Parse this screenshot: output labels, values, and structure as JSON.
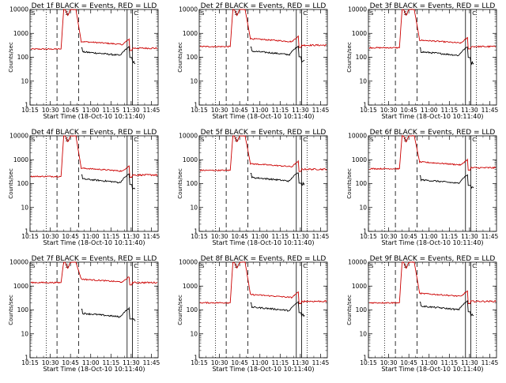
{
  "chart_data": {
    "type": "line",
    "scale": "log",
    "ylim": [
      1,
      10000
    ],
    "xlim": [
      "10:15",
      "11:50"
    ],
    "y_ticks": [
      "1",
      "10",
      "100",
      "1000",
      "10000"
    ],
    "x_ticks": [
      "10:15",
      "10:30",
      "10:45",
      "11:00",
      "11:15",
      "11:30",
      "11:45"
    ],
    "ylabel": "Counts/sec",
    "xlabel": "Start Time (18-Oct-10 10:11:40)",
    "colors": {
      "events": "#000000",
      "lld": "#cc0000"
    },
    "marker_labels": [
      "S",
      "C"
    ],
    "vlines": {
      "dotted": [
        "10:27",
        "11:35"
      ],
      "dashed": [
        "10:35",
        "10:51"
      ],
      "solid": [
        "11:27",
        "11:31"
      ]
    },
    "panels": [
      {
        "title": "Det 1f BLACK = Events, RED = LLD",
        "lld_base": 220,
        "lld_mid": 350,
        "ev_mid": 140,
        "lld_end": 240,
        "ev_end": 60
      },
      {
        "title": "Det 2f BLACK = Events, RED = LLD",
        "lld_base": 280,
        "lld_mid": 460,
        "ev_mid": 150,
        "lld_end": 320,
        "ev_end": 70
      },
      {
        "title": "Det 3f BLACK = Events, RED = LLD",
        "lld_base": 250,
        "lld_mid": 400,
        "ev_mid": 140,
        "lld_end": 280,
        "ev_end": 60
      },
      {
        "title": "Det 4f BLACK = Events, RED = LLD",
        "lld_base": 200,
        "lld_mid": 340,
        "ev_mid": 130,
        "lld_end": 230,
        "ev_end": 60
      },
      {
        "title": "Det 5f BLACK = Events, RED = LLD",
        "lld_base": 360,
        "lld_mid": 520,
        "ev_mid": 150,
        "lld_end": 400,
        "ev_end": 100
      },
      {
        "title": "Det 6f BLACK = Events, RED = LLD",
        "lld_base": 420,
        "lld_mid": 620,
        "ev_mid": 120,
        "lld_end": 460,
        "ev_end": 70
      },
      {
        "title": "Det 7f BLACK = Events, RED = LLD",
        "lld_base": 1400,
        "lld_mid": 1500,
        "ev_mid": 60,
        "lld_end": 1400,
        "ev_end": 40
      },
      {
        "title": "Det 8f BLACK = Events, RED = LLD",
        "lld_base": 200,
        "lld_mid": 340,
        "ev_mid": 110,
        "lld_end": 230,
        "ev_end": 60
      },
      {
        "title": "Det 9f BLACK = Events, RED = LLD",
        "lld_base": 200,
        "lld_mid": 380,
        "ev_mid": 120,
        "lld_end": 230,
        "ev_end": 60
      }
    ]
  }
}
